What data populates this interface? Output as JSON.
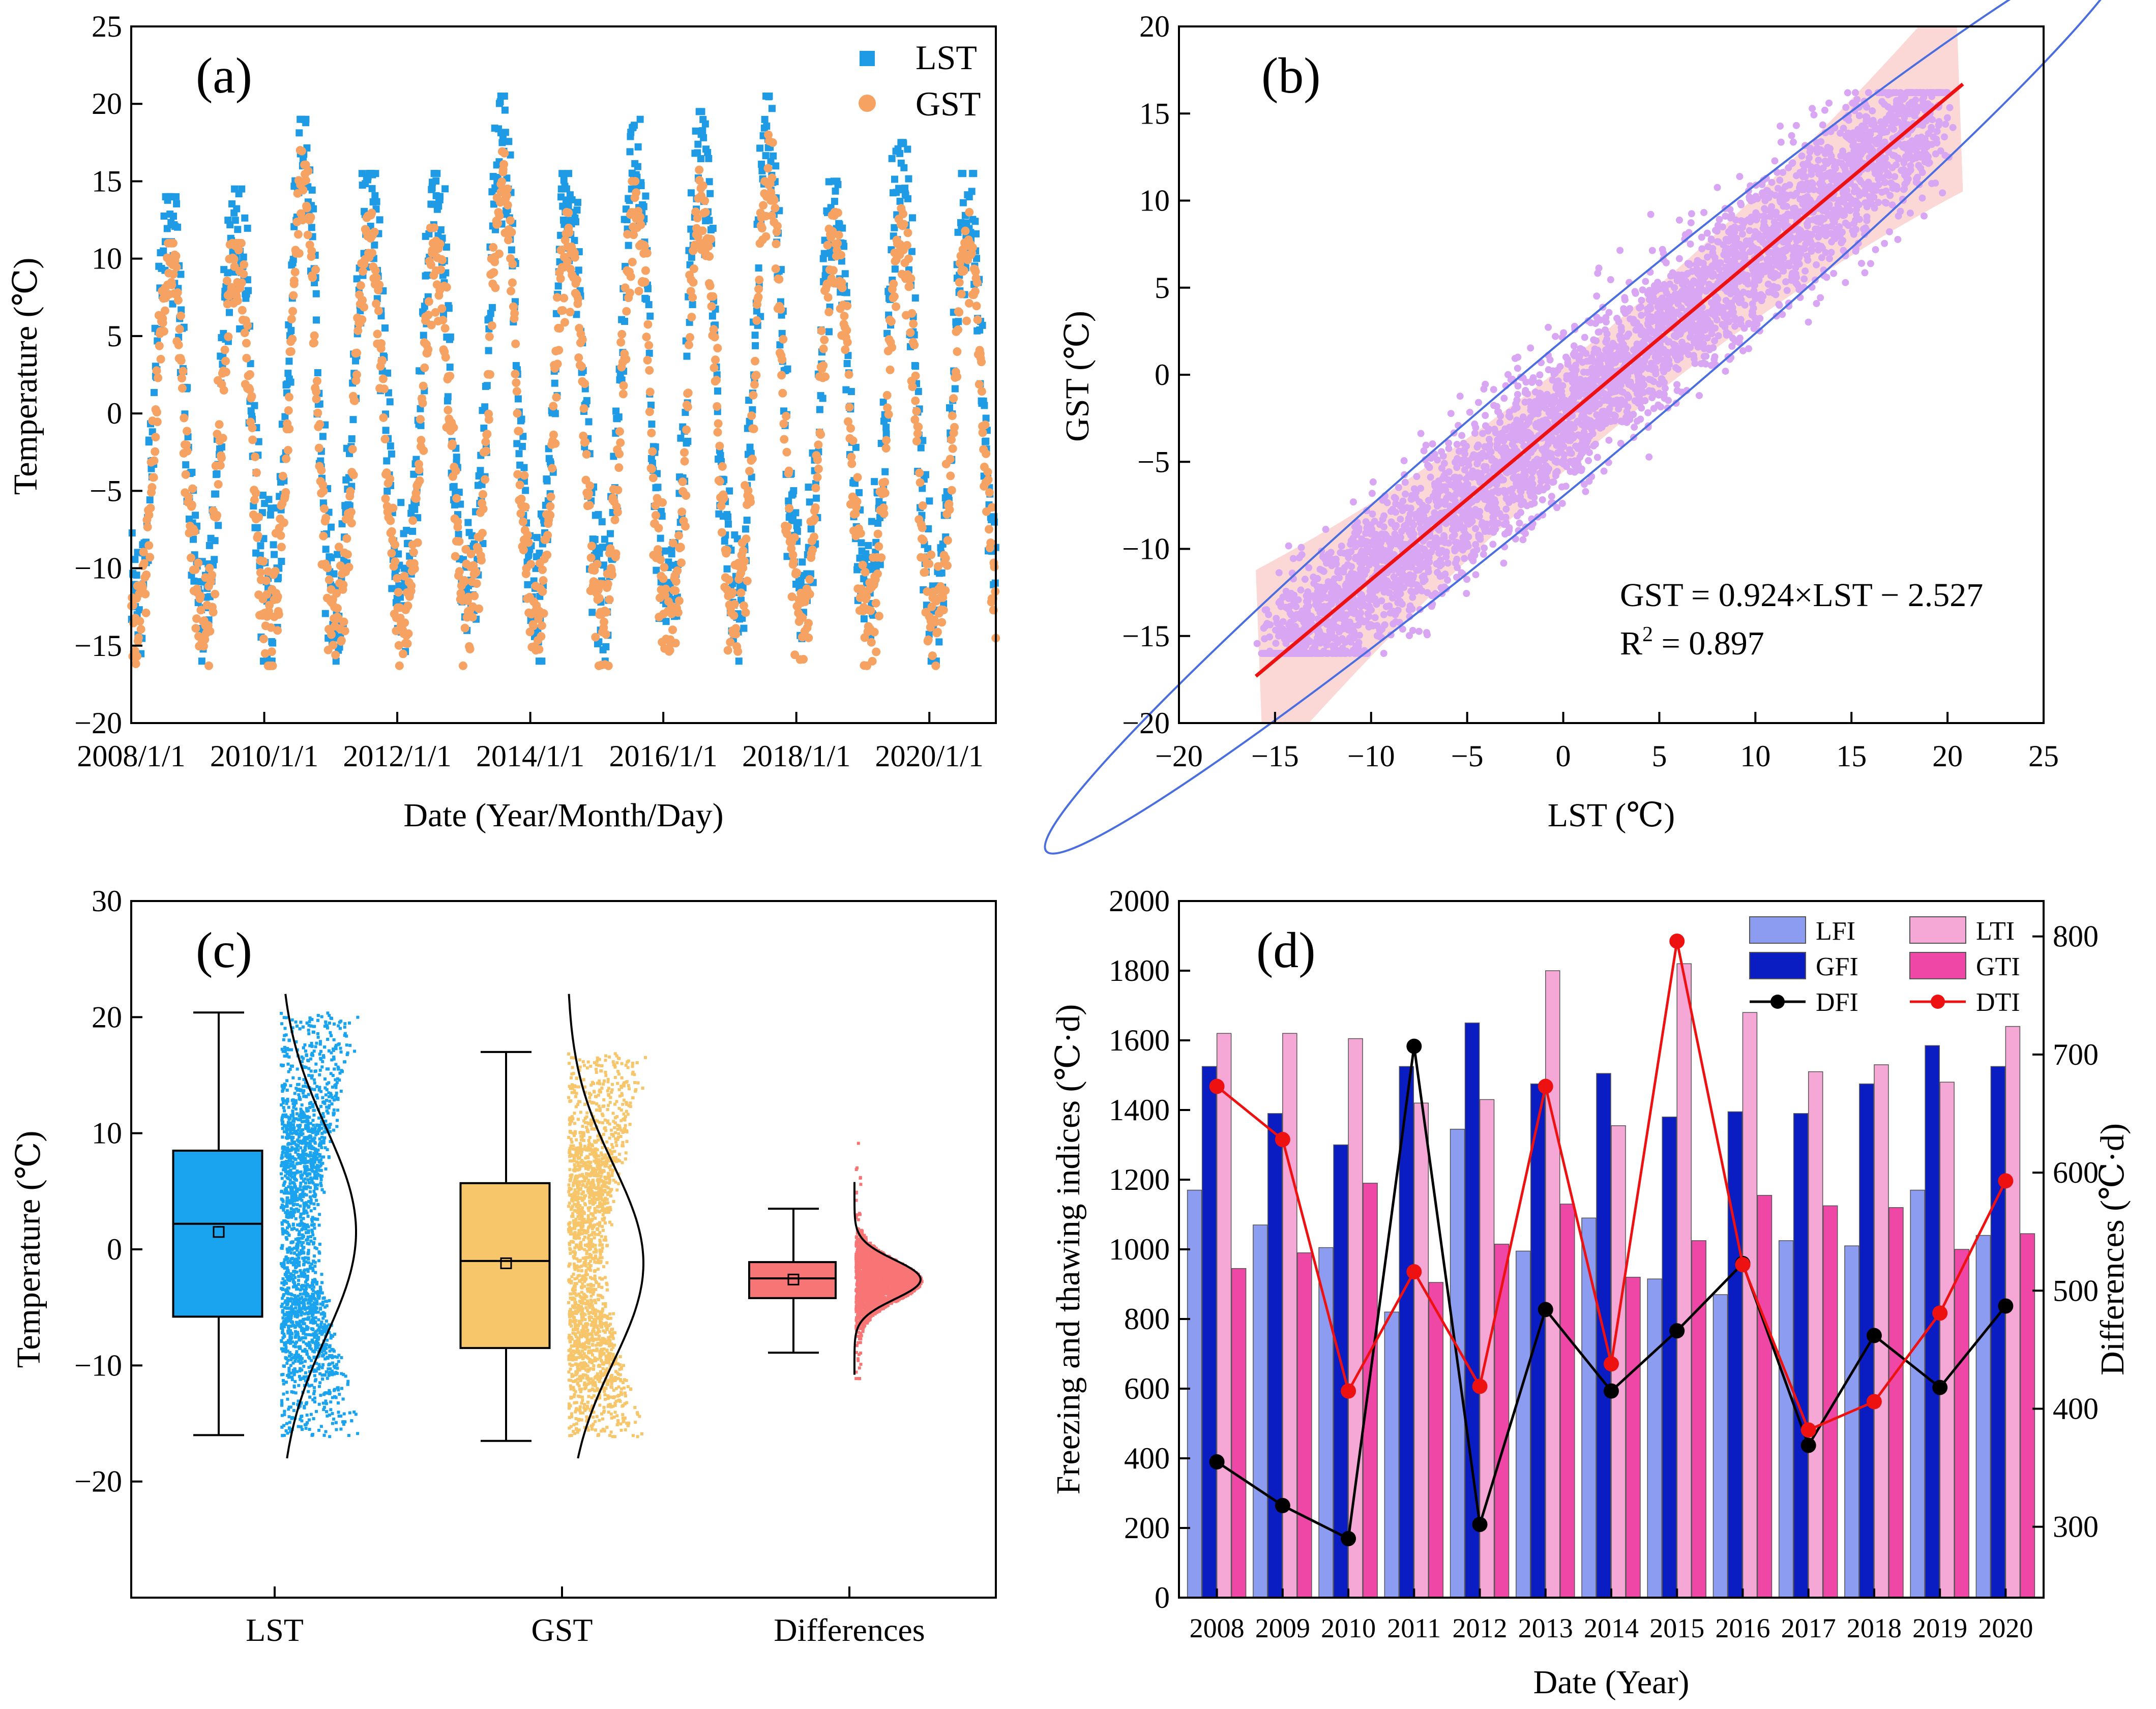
{
  "chart_data": [
    {
      "panel": "(a)",
      "type": "scatter",
      "xlabel": "Date (Year/Month/Day)",
      "ylabel": "Temperature (℃)",
      "ylim": [
        -20,
        25
      ],
      "yticks": [
        -20,
        -15,
        -10,
        -5,
        0,
        5,
        10,
        15,
        20,
        25
      ],
      "xtick_labels": [
        "2008/1/1",
        "2010/1/1",
        "2012/1/1",
        "2014/1/1",
        "2016/1/1",
        "2018/1/1",
        "2020/1/1"
      ],
      "xlim_years": [
        2008.0,
        2021.0
      ],
      "series": [
        {
          "name": "LST",
          "color": "#1f9be5",
          "marker": "square",
          "seasonal_mean": 1.5,
          "seasonal_amplitude": 12.5
        },
        {
          "name": "GST",
          "color": "#f5a262",
          "marker": "circle",
          "seasonal_mean": -1.2,
          "seasonal_amplitude": 10.5
        }
      ],
      "annual_peaks_lst": [
        14,
        14.5,
        19,
        15.5,
        15.5,
        20.5,
        15.5,
        19,
        19.5,
        20.5,
        15,
        17.5,
        15.5
      ],
      "annual_peaks_gst": [
        11,
        11,
        17,
        13,
        12,
        18,
        13,
        15,
        16,
        18,
        13,
        14,
        13
      ],
      "legend": [
        "LST",
        "GST"
      ]
    },
    {
      "panel": "(b)",
      "type": "scatter",
      "xlabel": "LST (℃)",
      "ylabel": "GST (℃)",
      "xlim": [
        -20,
        25
      ],
      "ylim": [
        -20,
        20
      ],
      "xticks": [
        -20,
        -15,
        -10,
        -5,
        0,
        5,
        10,
        15,
        20,
        25
      ],
      "yticks": [
        -20,
        -15,
        -10,
        -5,
        0,
        5,
        10,
        15,
        20
      ],
      "point_color": "#d8a6f2",
      "fit": {
        "slope": 0.924,
        "intercept": -2.527,
        "x_range": [
          -16,
          20.8
        ],
        "color": "#ee1111"
      },
      "equation": "GST = 0.924×LST − 2.527",
      "r2_label": "R",
      "r2_sup": "2",
      "r2_value": " = 0.897",
      "ellipse_color": "#4a6de0",
      "band_color": "#f9c8c4"
    },
    {
      "panel": "(c)",
      "type": "box",
      "ylabel": "Temperature (℃)",
      "ylim": [
        -30,
        30
      ],
      "yticks": [
        -20,
        -10,
        0,
        10,
        20,
        30
      ],
      "categories": [
        "LST",
        "GST",
        "Differences"
      ],
      "boxes": [
        {
          "name": "LST",
          "color": "#1aa3ee",
          "min": -16,
          "q1": -5.8,
          "median": 2.2,
          "mean": 1.5,
          "q3": 8.5,
          "max": 20.4,
          "dist_min": -16,
          "dist_max": 20.5,
          "curve_mean": 1.5,
          "curve_sd": 9
        },
        {
          "name": "GST",
          "color": "#f7c56a",
          "min": -16.5,
          "q1": -8.5,
          "median": -1.0,
          "mean": -1.2,
          "q3": 5.7,
          "max": 17.0,
          "dist_min": -16,
          "dist_max": 17,
          "curve_mean": -1.2,
          "curve_sd": 8.5
        },
        {
          "name": "Differences",
          "color": "#f87575",
          "min": -8.9,
          "q1": -4.2,
          "median": -2.5,
          "mean": -2.6,
          "q3": -1.1,
          "max": 3.5,
          "dist_min": -11,
          "dist_max": 11,
          "curve_mean": -2.6,
          "curve_sd": 2
        }
      ]
    },
    {
      "panel": "(d)",
      "type": "bar",
      "xlabel": "Date (Year)",
      "ylabel": "Freezing and thawing indices (℃·d)",
      "y2label": "Differences (℃·d)",
      "ylim": [
        0,
        2000
      ],
      "yticks": [
        0,
        200,
        400,
        600,
        800,
        1000,
        1200,
        1400,
        1600,
        1800,
        2000
      ],
      "y2lim": [
        240,
        830
      ],
      "y2ticks": [
        300,
        400,
        500,
        600,
        700,
        800
      ],
      "categories": [
        "2008",
        "2009",
        "2010",
        "2011",
        "2012",
        "2013",
        "2014",
        "2015",
        "2016",
        "2017",
        "2018",
        "2019",
        "2020"
      ],
      "series": [
        {
          "name": "LFI",
          "color": "#8c9cf0",
          "values": [
            1170,
            1070,
            1005,
            820,
            1345,
            995,
            1090,
            915,
            870,
            1025,
            1010,
            1170,
            1040
          ]
        },
        {
          "name": "GFI",
          "color": "#0a1dc2",
          "values": [
            1525,
            1390,
            1300,
            1525,
            1650,
            1475,
            1505,
            1380,
            1395,
            1390,
            1475,
            1585,
            1525
          ]
        },
        {
          "name": "LTI",
          "color": "#f5a8d6",
          "values": [
            1620,
            1620,
            1605,
            1420,
            1430,
            1800,
            1355,
            1820,
            1680,
            1510,
            1530,
            1480,
            1640
          ]
        },
        {
          "name": "GTI",
          "color": "#ef47a5",
          "values": [
            945,
            990,
            1190,
            905,
            1015,
            1130,
            920,
            1025,
            1155,
            1125,
            1120,
            1000,
            1045
          ]
        }
      ],
      "lines": [
        {
          "name": "DFI",
          "color": "#000000",
          "axis": "right",
          "values": [
            355,
            318,
            290,
            707,
            302,
            484,
            415,
            466,
            523,
            369,
            462,
            418,
            487
          ]
        },
        {
          "name": "DTI",
          "color": "#ee1111",
          "axis": "right",
          "values": [
            673,
            628,
            415,
            516,
            419,
            673,
            438,
            796,
            522,
            382,
            406,
            481,
            593
          ]
        }
      ],
      "legend": [
        "LFI",
        "LTI",
        "GFI",
        "GTI",
        "DFI",
        "DTI"
      ]
    }
  ]
}
